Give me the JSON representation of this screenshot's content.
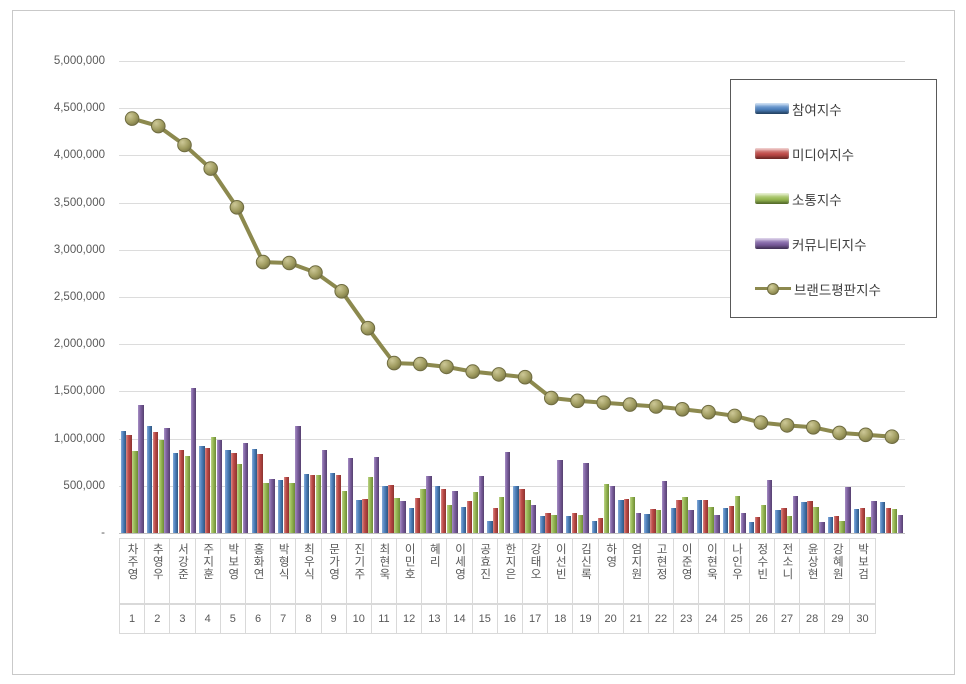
{
  "y_axis": {
    "labels": [
      "5,000,000",
      "4,500,000",
      "4,000,000",
      "3,500,000",
      "3,000,000",
      "2,500,000",
      "2,000,000",
      "1,500,000",
      "1,000,000",
      "500,000",
      "-"
    ]
  },
  "legend": {
    "items": [
      {
        "label": "참여지수",
        "color": "#4F81BD",
        "type": "bar"
      },
      {
        "label": "미디어지수",
        "color": "#BE4B48",
        "type": "bar"
      },
      {
        "label": "소통지수",
        "color": "#98B954",
        "type": "bar"
      },
      {
        "label": "커뮤니티지수",
        "color": "#7D60A0",
        "type": "bar"
      },
      {
        "label": "브랜드평판지수",
        "color": "#8C894E",
        "type": "line"
      }
    ]
  },
  "chart_data": {
    "type": "bar",
    "subtype": "grouped-bars-with-line-overlay",
    "title": "",
    "xlabel": "",
    "ylabel": "",
    "ylim": [
      0,
      5000000
    ],
    "y_tick_step": 500000,
    "grid": "horizontal",
    "legend_position": "upper-right",
    "categories": [
      "차주영",
      "추영우",
      "서강준",
      "주지훈",
      "박보영",
      "홍화연",
      "박형식",
      "최우식",
      "문가영",
      "진기주",
      "최현욱",
      "이민호",
      "혜리",
      "이세영",
      "공효진",
      "한지은",
      "강태오",
      "이선빈",
      "김신록",
      "하영",
      "엄지원",
      "고현정",
      "이준영",
      "이현욱",
      "나인우",
      "정수빈",
      "전소니",
      "윤상현",
      "강혜원",
      "박보검"
    ],
    "ranks": [
      "1",
      "2",
      "3",
      "4",
      "5",
      "6",
      "7",
      "8",
      "9",
      "10",
      "11",
      "12",
      "13",
      "14",
      "15",
      "16",
      "17",
      "18",
      "19",
      "20",
      "21",
      "22",
      "23",
      "24",
      "25",
      "26",
      "27",
      "28",
      "29",
      "30"
    ],
    "series": [
      {
        "name": "참여지수",
        "type": "bar",
        "color": "#4F81BD",
        "values": [
          1080000,
          1130000,
          850000,
          920000,
          880000,
          890000,
          560000,
          630000,
          640000,
          350000,
          500000,
          270000,
          495000,
          275000,
          125000,
          495000,
          180000,
          180000,
          130000,
          345000,
          205000,
          270000,
          345000,
          265000,
          120000,
          240000,
          330000,
          175000,
          250000,
          330000
        ]
      },
      {
        "name": "미디어지수",
        "type": "bar",
        "color": "#BE4B48",
        "values": [
          1040000,
          1070000,
          880000,
          900000,
          845000,
          835000,
          595000,
          620000,
          620000,
          365000,
          510000,
          375000,
          465000,
          340000,
          270000,
          465000,
          215000,
          215000,
          160000,
          365000,
          250000,
          350000,
          355000,
          285000,
          170000,
          265000,
          335000,
          185000,
          265000,
          265000
        ]
      },
      {
        "name": "소통지수",
        "type": "bar",
        "color": "#98B954",
        "values": [
          870000,
          990000,
          820000,
          1020000,
          730000,
          525000,
          525000,
          610000,
          450000,
          590000,
          370000,
          465000,
          295000,
          430000,
          385000,
          355000,
          190000,
          195000,
          520000,
          380000,
          240000,
          385000,
          280000,
          395000,
          300000,
          185000,
          280000,
          125000,
          170000,
          260000
        ]
      },
      {
        "name": "커뮤니티지수",
        "type": "bar",
        "color": "#7D60A0",
        "values": [
          1360000,
          1110000,
          1540000,
          990000,
          950000,
          570000,
          1130000,
          880000,
          800000,
          810000,
          340000,
          600000,
          445000,
          600000,
          855000,
          295000,
          770000,
          740000,
          500000,
          210000,
          555000,
          245000,
          195000,
          210000,
          560000,
          390000,
          115000,
          490000,
          340000,
          190000
        ]
      }
    ],
    "line_series": {
      "name": "브랜드평판지수",
      "type": "line",
      "color": "#8C894E",
      "marker": "circle",
      "values": [
        4390000,
        4310000,
        4110000,
        3860000,
        3450000,
        2870000,
        2860000,
        2760000,
        2560000,
        2170000,
        1800000,
        1790000,
        1760000,
        1710000,
        1680000,
        1650000,
        1430000,
        1400000,
        1380000,
        1360000,
        1340000,
        1310000,
        1280000,
        1240000,
        1170000,
        1140000,
        1120000,
        1060000,
        1040000,
        1020000
      ]
    }
  }
}
